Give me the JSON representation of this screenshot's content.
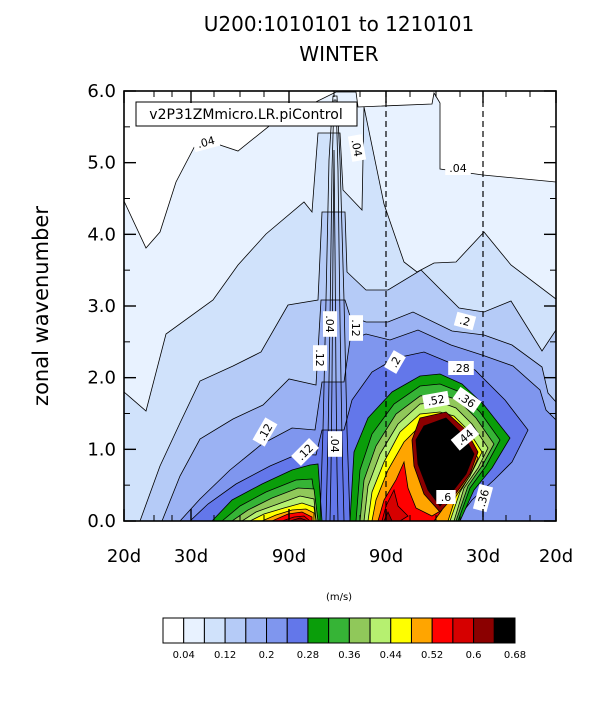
{
  "title_line1": "U200:1010101 to 1210101",
  "title_line2": "WINTER",
  "legend_label": "v2P31ZMmicro.LR.piControl",
  "units_label": "(m/s)",
  "chart_data": {
    "type": "contour",
    "ylabel": "zonal wavenumber",
    "xlabel": "",
    "ylim": [
      0,
      6
    ],
    "y_ticks": [
      "0.0",
      "1.0",
      "2.0",
      "3.0",
      "4.0",
      "5.0",
      "6.0"
    ],
    "x_ticks": [
      "20d",
      "30d",
      "90d",
      "90d",
      "30d",
      "20d"
    ],
    "dashed_vertical_lines_at_ticks": [
      "90d (right)",
      "30d (right)"
    ],
    "contour_levels": [
      0.04,
      0.08,
      0.12,
      0.16,
      0.2,
      0.24,
      0.28,
      0.32,
      0.36,
      0.4,
      0.44,
      0.48,
      0.52,
      0.56,
      0.6,
      0.64,
      0.68
    ],
    "colorbar_labels": [
      "0.04",
      "0.12",
      "0.2",
      "0.28",
      "0.36",
      "0.44",
      "0.52",
      "0.6",
      "0.68"
    ],
    "colorbar_colors": [
      "#ffffff",
      "#e8f2ff",
      "#d0e2fb",
      "#b5cbf7",
      "#9bb2f3",
      "#7f96ee",
      "#6377ea",
      "#0a9e0a",
      "#36b436",
      "#90c85a",
      "#b6f070",
      "#ffff00",
      "#ffa500",
      "#ff0000",
      "#d60000",
      "#8b0000",
      "#000000"
    ],
    "inline_contour_labels": [
      ".04",
      ".04",
      ".04",
      ".04",
      ".04",
      ".12",
      ".12",
      ".12",
      ".12",
      ".2",
      ".2",
      ".28",
      ".36",
      ".36",
      ".44",
      ".52",
      ".6"
    ]
  }
}
